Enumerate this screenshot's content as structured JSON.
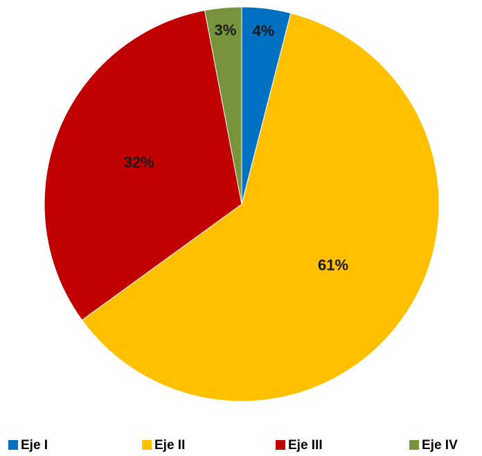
{
  "chart_data": {
    "type": "pie",
    "categories": [
      "Eje I",
      "Eje II",
      "Eje III",
      "Eje IV"
    ],
    "values": [
      4,
      61,
      32,
      3
    ],
    "value_labels": [
      "4%",
      "61%",
      "32%",
      "3%"
    ],
    "colors": [
      "#0070c0",
      "#ffc000",
      "#c00000",
      "#77933c"
    ],
    "legend": "bottom"
  }
}
